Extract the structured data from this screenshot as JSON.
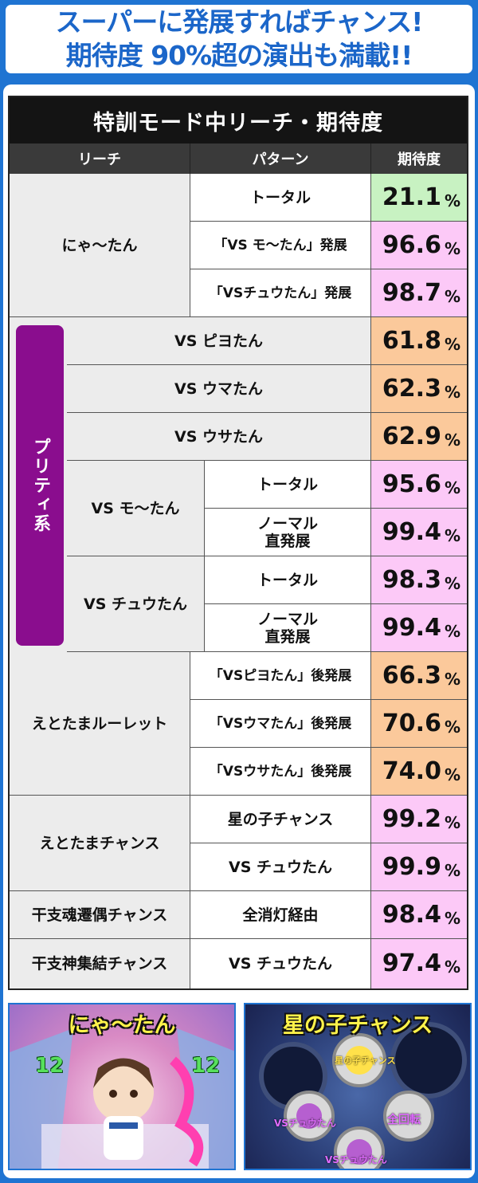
{
  "banner": {
    "line1": "スーパーに発展すればチャンス!",
    "line2": "期待度 90%超の演出も満載!!"
  },
  "table": {
    "title": "特訓モード中リーチ・期待度",
    "headers": {
      "reach": "リーチ",
      "pattern": "パターン",
      "rate": "期待度"
    },
    "percent": "%",
    "groups": {
      "nyaatan": "にゃ〜たん",
      "pretty": "プリティ系",
      "vs_mootan": "VS モ〜たん",
      "vs_chuutan": "VS チュウたん",
      "etotama_roulette": "えとたまルーレット",
      "etotama_chance": "えとたまチャンス",
      "kanshi_soul": "干支魂遷偶チャンス",
      "kanshi_god": "干支神集結チャンス"
    },
    "rows": [
      {
        "pattern": "トータル",
        "value": "21.1",
        "color": "#c8f2c2"
      },
      {
        "pattern": "「VS モ〜たん」発展",
        "value": "96.6",
        "color": "#fcc9f7"
      },
      {
        "pattern": "「VSチュウたん」発展",
        "value": "98.7",
        "color": "#fcc9f7"
      },
      {
        "pattern": "VS ピヨたん",
        "value": "61.8",
        "color": "#fbc99b"
      },
      {
        "pattern": "VS ウマたん",
        "value": "62.3",
        "color": "#fbc99b"
      },
      {
        "pattern": "VS ウサたん",
        "value": "62.9",
        "color": "#fbc99b"
      },
      {
        "pattern": "トータル",
        "value": "95.6",
        "color": "#fcc9f7"
      },
      {
        "pattern": "ノーマル直発展",
        "pattern_l1": "ノーマル",
        "pattern_l2": "直発展",
        "value": "99.4",
        "color": "#fcc9f7"
      },
      {
        "pattern": "トータル",
        "value": "98.3",
        "color": "#fcc9f7"
      },
      {
        "pattern": "ノーマル直発展",
        "pattern_l1": "ノーマル",
        "pattern_l2": "直発展",
        "value": "99.4",
        "color": "#fcc9f7"
      },
      {
        "pattern": "「VSピヨたん」後発展",
        "value": "66.3",
        "color": "#fbc99b"
      },
      {
        "pattern": "「VSウマたん」後発展",
        "value": "70.6",
        "color": "#fbc99b"
      },
      {
        "pattern": "「VSウサたん」後発展",
        "value": "74.0",
        "color": "#fbc99b"
      },
      {
        "pattern": "星の子チャンス",
        "value": "99.2",
        "color": "#fcc9f7"
      },
      {
        "pattern": "VS チュウたん",
        "value": "99.9",
        "color": "#fcc9f7"
      },
      {
        "pattern": "全消灯経由",
        "value": "98.4",
        "color": "#fcc9f7"
      },
      {
        "pattern": "VS チュウたん",
        "value": "97.4",
        "color": "#fcc9f7"
      }
    ]
  },
  "screenshots": {
    "left_title": "にゃ〜たん",
    "right_title": "星の子チャンス",
    "left_number": "12",
    "right_labels": [
      "VSチュウたん",
      "全回転",
      "VSチュウたん",
      "星の子チャンス"
    ]
  }
}
